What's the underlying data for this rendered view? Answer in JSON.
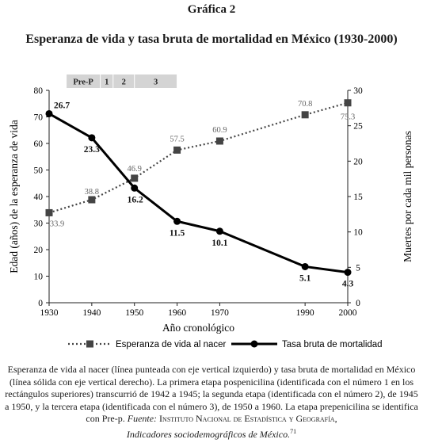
{
  "figure_label": "Gráfica 2",
  "chart_data": {
    "type": "line",
    "title": "Esperanza de vida y tasa bruta de mortalidad en México (1930-2000)",
    "xlabel": "Año cronológico",
    "ylabel_left": "Edad (años) de la esperanza de vida",
    "ylabel_right": "Muertes por cada mil personas",
    "x": [
      1930,
      1940,
      1950,
      1960,
      1970,
      1990,
      2000
    ],
    "xlim": [
      1930,
      2000
    ],
    "x_ticks": [
      "1930",
      "1940",
      "1950",
      "1960",
      "1970",
      "1990",
      "2000"
    ],
    "ylim_left": [
      0,
      80
    ],
    "y_ticks_left": [
      "0",
      "10",
      "20",
      "30",
      "40",
      "50",
      "60",
      "70",
      "80"
    ],
    "ylim_right": [
      0,
      30
    ],
    "y_ticks_right": [
      "0",
      "5",
      "10",
      "15",
      "20",
      "25",
      "30"
    ],
    "grid": false,
    "legend_position": "bottom",
    "series": [
      {
        "name": "Esperanza de vida al nacer",
        "axis": "left",
        "style": "dotted-square",
        "color": "#444444",
        "values": [
          33.9,
          38.8,
          46.9,
          57.5,
          60.9,
          70.8,
          75.3
        ],
        "labels": [
          "33.9",
          "38.8",
          "46.9",
          "57.5",
          "60.9",
          "70.8",
          "75.3"
        ]
      },
      {
        "name": "Tasa bruta de mortalidad",
        "axis": "right",
        "style": "solid-circle",
        "color": "#000000",
        "values": [
          26.7,
          23.3,
          16.2,
          11.5,
          10.1,
          5.1,
          4.3
        ],
        "labels": [
          "26.7",
          "23.3",
          "16.2",
          "11.5",
          "10.1",
          "5.1",
          "4.3"
        ]
      }
    ],
    "stages": [
      {
        "label": "Pre-P",
        "start": 1934,
        "end": 1942
      },
      {
        "label": "1",
        "start": 1942,
        "end": 1945
      },
      {
        "label": "2",
        "start": 1945,
        "end": 1950
      },
      {
        "label": "3",
        "start": 1950,
        "end": 1960
      }
    ],
    "stage_color": "#d4d4d4"
  },
  "caption": {
    "text": "Esperanza de vida al nacer (línea punteada con eje vertical izquierdo) y tasa bruta de mortalidad en México (línea sólida con eje vertical derecho). La primera etapa pospenicilina (identificada con el número 1 en los rectángulos superiores) transcurrió de 1942 a 1945; la segunda etapa (identificada con el número 2), de 1945 a 1950, y la tercera etapa (identificada con el número 3), de 1950 a 1960. La etapa prepenicilina se identifica con Pre-p.",
    "source_prefix": "Fuente:",
    "source_org": "Instituto Nacional de Estadística y Geografía,",
    "source_title": "Indicadores sociodemográficos de México.",
    "footnote": "71"
  }
}
